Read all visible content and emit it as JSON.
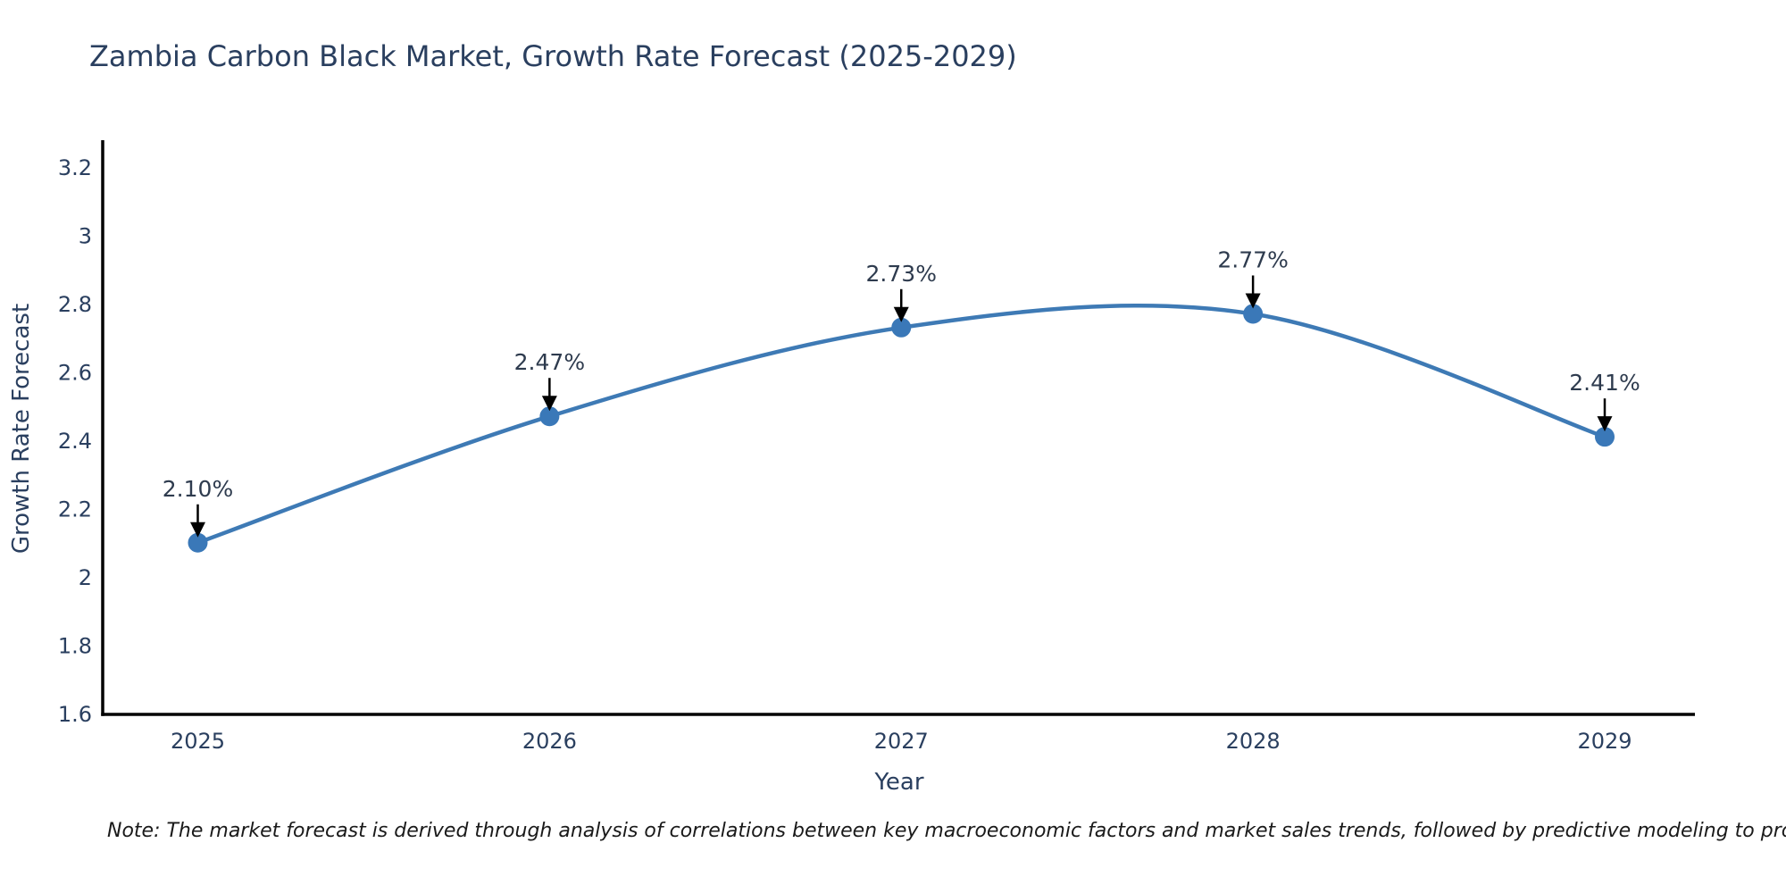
{
  "title": "Zambia Carbon Black Market, Growth Rate Forecast (2025-2029)",
  "note": "Note: The market forecast is derived through analysis of correlations between key macroeconomic factors and market sales trends, followed by predictive modeling to project future sales",
  "chart_data": {
    "type": "line",
    "title": "Zambia Carbon Black Market, Growth Rate Forecast (2025-2029)",
    "xlabel": "Year",
    "ylabel": "Growth Rate Forecast",
    "categories": [
      "2025",
      "2026",
      "2027",
      "2028",
      "2029"
    ],
    "values": [
      2.1,
      2.47,
      2.73,
      2.77,
      2.41
    ],
    "point_labels": [
      "2.10%",
      "2.47%",
      "2.73%",
      "2.77%",
      "2.41%"
    ],
    "ylim": [
      1.6,
      3.2
    ],
    "yticks": [
      1.6,
      1.8,
      2.0,
      2.2,
      2.4,
      2.6,
      2.8,
      3.0,
      3.2
    ],
    "ytick_labels": [
      "1.6",
      "1.8",
      "2",
      "2.2",
      "2.4",
      "2.6",
      "2.8",
      "3",
      "3.2"
    ],
    "line_shape": "spline",
    "grid": false,
    "legend": "none",
    "colors": {
      "line": "#3e7ab5",
      "marker": "#3a78b8",
      "arrow": "#000000",
      "axis": "#000000",
      "text": "#2a3f5f",
      "note": "#1a1a1a"
    }
  }
}
